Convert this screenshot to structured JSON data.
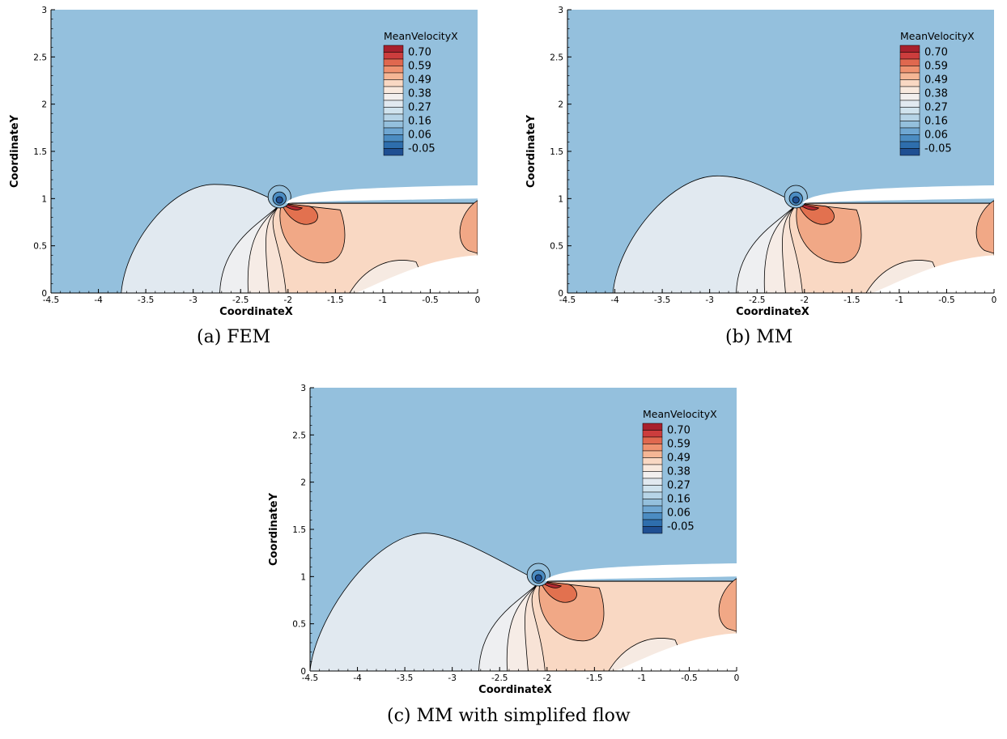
{
  "chart_data": [
    {
      "type": "contour",
      "caption": "(a) FEM",
      "xlabel": "CoordinateX",
      "ylabel": "CoordinateY",
      "xlim": [
        -4.5,
        0
      ],
      "ylim": [
        0,
        3
      ],
      "xticks": [
        -4.5,
        -4,
        -3.5,
        -3,
        -2.5,
        -2,
        -1.5,
        -1,
        -0.5,
        0
      ],
      "yticks": [
        0,
        0.5,
        1,
        1.5,
        2,
        2.5,
        3
      ],
      "colorbar_title": "MeanVelocityX",
      "colorbar_labels": [
        "0.70",
        "0.59",
        "0.49",
        "0.38",
        "0.27",
        "0.16",
        "0.06",
        "-0.05"
      ],
      "colorbar_colors": [
        "#a8202c",
        "#cc3d3d",
        "#e0684f",
        "#ef9270",
        "#f5b695",
        "#f9d8c3",
        "#f8e9de",
        "#f2efee",
        "#e1e9f0",
        "#d0e3ee",
        "#b6d4e7",
        "#94c0dd",
        "#6fa7d2",
        "#4b8cc2",
        "#2e6ead",
        "#1f4f92"
      ],
      "background_level": 0.16,
      "outer_contour": {
        "level": 0.27,
        "x_start": -3.76,
        "apex": [
          -2.78,
          1.15
        ]
      },
      "stagnation_point": [
        -2.07,
        0.95
      ]
    },
    {
      "type": "contour",
      "caption": "(b) MM",
      "xlabel": "CoordinateX",
      "ylabel": "CoordinateY",
      "xlim": [
        -4.5,
        0
      ],
      "ylim": [
        0,
        3
      ],
      "xticks": [
        -4.5,
        -4,
        -3.5,
        -3,
        -2.5,
        -2,
        -1.5,
        -1,
        -0.5,
        0
      ],
      "yticks": [
        0,
        0.5,
        1,
        1.5,
        2,
        2.5,
        3
      ],
      "colorbar_title": "MeanVelocityX",
      "colorbar_labels": [
        "0.70",
        "0.59",
        "0.49",
        "0.38",
        "0.27",
        "0.16",
        "0.06",
        "-0.05"
      ],
      "colorbar_colors": [
        "#a8202c",
        "#cc3d3d",
        "#e0684f",
        "#ef9270",
        "#f5b695",
        "#f9d8c3",
        "#f8e9de",
        "#f2efee",
        "#e1e9f0",
        "#d0e3ee",
        "#b6d4e7",
        "#94c0dd",
        "#6fa7d2",
        "#4b8cc2",
        "#2e6ead",
        "#1f4f92"
      ],
      "background_level": 0.16,
      "outer_contour": {
        "level": 0.27,
        "x_start": -4.02,
        "apex": [
          -2.92,
          1.24
        ]
      },
      "stagnation_point": [
        -2.07,
        0.95
      ]
    },
    {
      "type": "contour",
      "caption": "(c) MM with simplifed flow",
      "xlabel": "CoordinateX",
      "ylabel": "CoordinateY",
      "xlim": [
        -4.5,
        0
      ],
      "ylim": [
        0,
        3
      ],
      "xticks": [
        -4.5,
        -4,
        -3.5,
        -3,
        -2.5,
        -2,
        -1.5,
        -1,
        -0.5,
        0
      ],
      "yticks": [
        0,
        0.5,
        1,
        1.5,
        2,
        2.5,
        3
      ],
      "colorbar_title": "MeanVelocityX",
      "colorbar_labels": [
        "0.70",
        "0.59",
        "0.49",
        "0.38",
        "0.27",
        "0.16",
        "0.06",
        "-0.05"
      ],
      "colorbar_colors": [
        "#a8202c",
        "#cc3d3d",
        "#e0684f",
        "#ef9270",
        "#f5b695",
        "#f9d8c3",
        "#f8e9de",
        "#f2efee",
        "#e1e9f0",
        "#d0e3ee",
        "#b6d4e7",
        "#94c0dd",
        "#6fa7d2",
        "#4b8cc2",
        "#2e6ead",
        "#1f4f92"
      ],
      "background_level": 0.16,
      "outer_contour": {
        "level": 0.27,
        "x_start": -4.5,
        "apex": [
          -3.28,
          1.46
        ]
      },
      "stagnation_point": [
        -2.07,
        0.95
      ]
    }
  ]
}
